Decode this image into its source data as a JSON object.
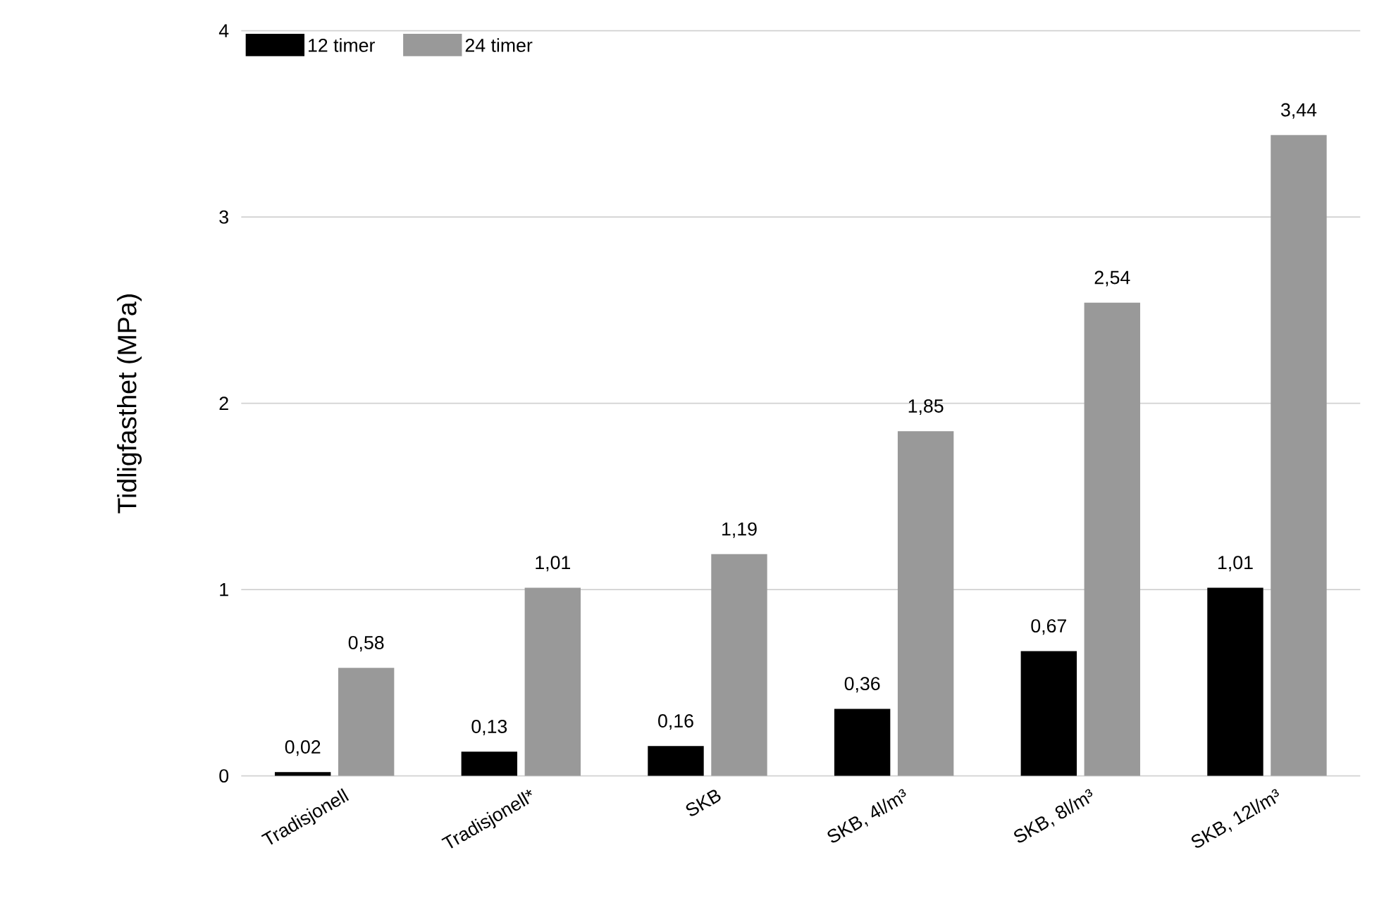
{
  "chart_data": {
    "type": "bar",
    "ylabel": "Tidligfasthet (MPa)",
    "categories": [
      "Tradisjonell",
      "Tradisjonell*",
      "SKB",
      "SKB, 4l/m³",
      "SKB, 8l/m³",
      "SKB, 12l/m³"
    ],
    "series": [
      {
        "name": "12 timer",
        "color": "#000000",
        "values": [
          0.02,
          0.13,
          0.16,
          0.36,
          0.67,
          1.01
        ],
        "value_labels": [
          "0,02",
          "0,13",
          "0,16",
          "0,36",
          "0,67",
          "1,01"
        ]
      },
      {
        "name": "24 timer",
        "color": "#999999",
        "values": [
          0.58,
          1.01,
          1.19,
          1.85,
          2.54,
          3.44
        ],
        "value_labels": [
          "0,58",
          "1,01",
          "1,19",
          "1,85",
          "2,54",
          "3,44"
        ]
      }
    ],
    "ylim": [
      0,
      4
    ],
    "yticks": [
      0,
      1,
      2,
      3,
      4
    ],
    "grid": "y",
    "legend": "top left"
  }
}
